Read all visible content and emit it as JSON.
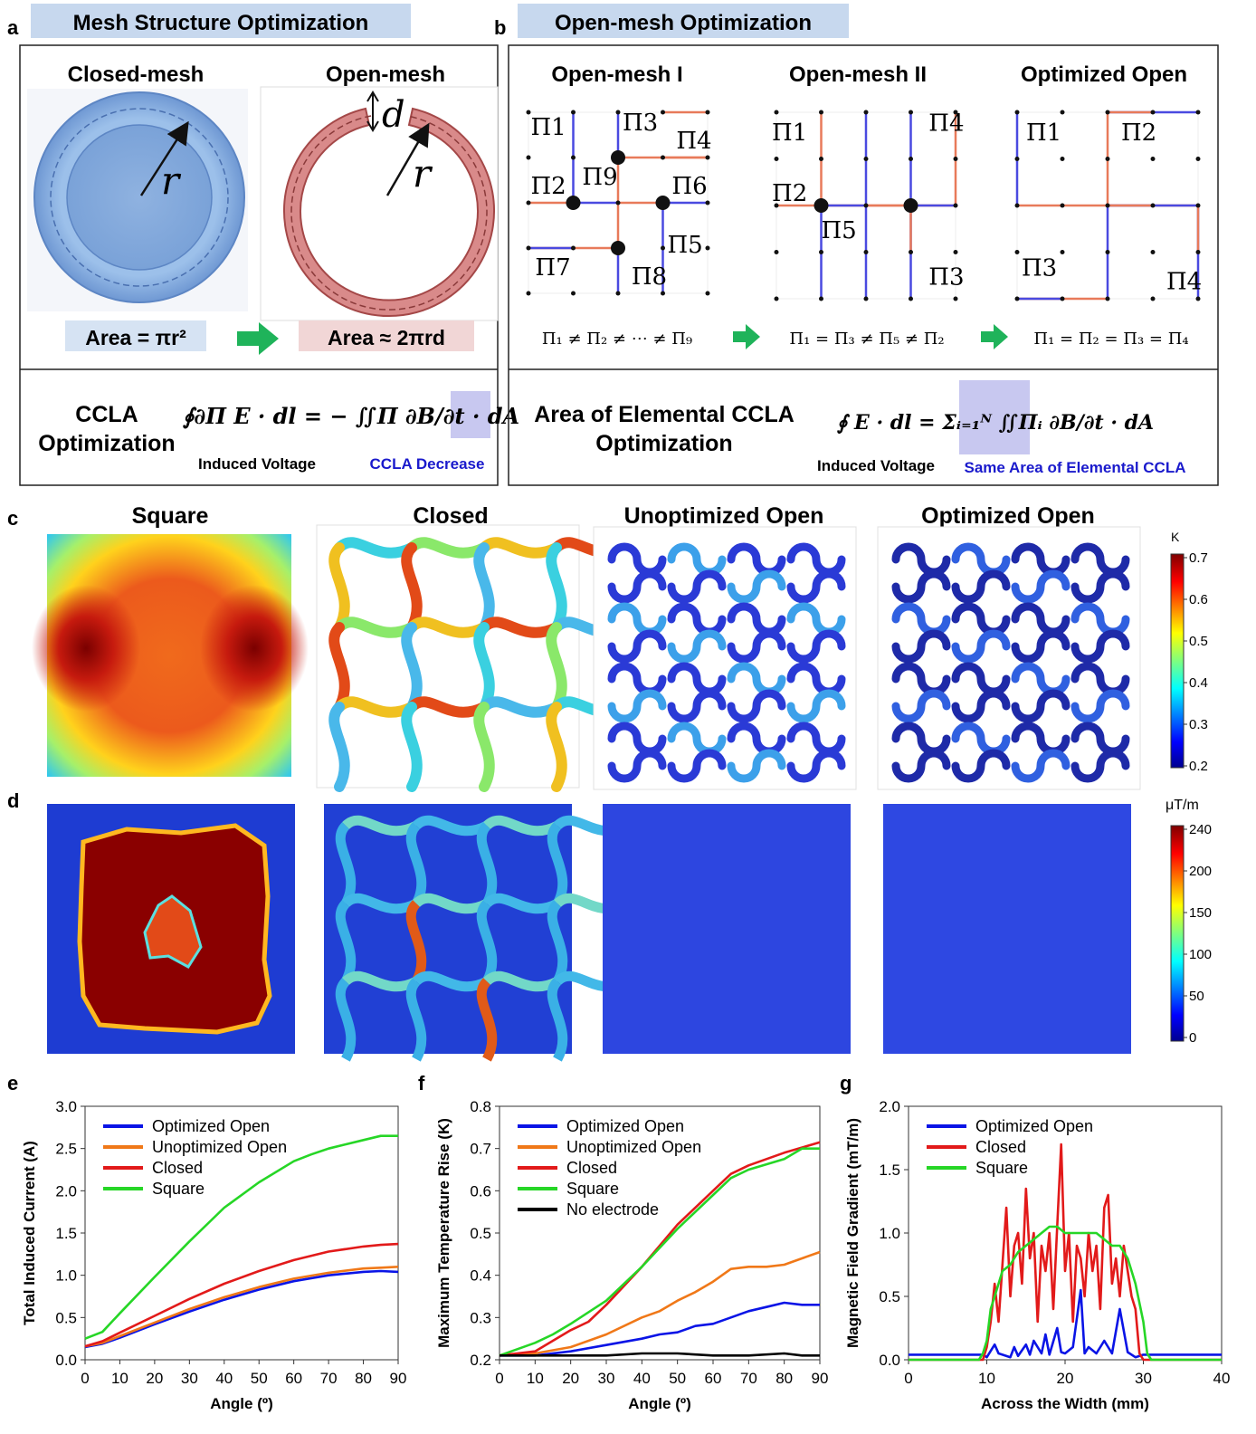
{
  "panel_labels": {
    "a": "a",
    "b": "b",
    "c": "c",
    "d": "d",
    "e": "e",
    "f": "f",
    "g": "g"
  },
  "colors": {
    "banner": "#c7d8ee",
    "closed_ring": "#7fa7d9",
    "open_ring": "#d47a7a",
    "arrow_green": "#1fb35a",
    "mesh_red": "#e87a5a",
    "mesh_blue": "#4a4ae0",
    "highlight": "#c8c8f0",
    "ccla_blue": "#1a1acc",
    "optimized": "#0a14e6",
    "unoptimized": "#f07818",
    "closed": "#e21a1a",
    "square": "#26d626",
    "no_electrode": "#000000"
  },
  "panel_a": {
    "banner": "Mesh Structure Optimization",
    "closed_title": "Closed-mesh",
    "open_title": "Open-mesh",
    "r_symbol": "r",
    "d_symbol": "d",
    "closed_area": "Area = πr²",
    "open_area": "Area ≈ 2πrd",
    "ccla_line1": "CCLA",
    "ccla_line2": "Optimization",
    "eq_lhs": "∮∂Π E · dl = − ∬Π ∂B/∂t · dA",
    "induced_voltage": "Induced Voltage",
    "ccla_decrease": "CCLA Decrease"
  },
  "panel_b": {
    "banner": "Open-mesh Optimization",
    "mesh1_title": "Open-mesh I",
    "mesh2_title": "Open-mesh II",
    "mesh3_title": "Optimized Open",
    "mesh1_labels": [
      "Π1",
      "Π2",
      "Π3",
      "Π4",
      "Π5",
      "Π6",
      "Π7",
      "Π8",
      "Π9"
    ],
    "mesh2_labels": [
      "Π1",
      "Π2",
      "Π3",
      "Π4",
      "Π5"
    ],
    "mesh3_labels": [
      "Π1",
      "Π2",
      "Π3",
      "Π4"
    ],
    "rel1": "Π₁ ≠ Π₂ ≠ ⋯ ≠ Π₉",
    "rel2": "Π₁ = Π₃ ≠ Π₅ ≠ Π₂",
    "rel3": "Π₁ = Π₂ = Π₃ = Π₄",
    "elem_line1": "Area of Elemental CCLA",
    "elem_line2": "Optimization",
    "induced_voltage": "Induced Voltage",
    "same_area": "Same Area of Elemental CCLA"
  },
  "panel_c": {
    "titles": [
      "Square",
      "Closed",
      "Unoptimized Open",
      "Optimized Open"
    ],
    "colorbar_unit": "K",
    "colorbar_ticks": [
      "0.7",
      "0.6",
      "0.5",
      "0.4",
      "0.3",
      "0.2"
    ]
  },
  "panel_d": {
    "colorbar_unit": "μT/m",
    "colorbar_ticks": [
      "240",
      "200",
      "150",
      "100",
      "50",
      "0"
    ]
  },
  "chart_data": [
    {
      "id": "e",
      "type": "line",
      "xlabel": "Angle (º)",
      "ylabel": "Total Induced Current (A)",
      "xlim": [
        0,
        90
      ],
      "ylim": [
        0,
        3.0
      ],
      "xticks": [
        "0",
        "10",
        "20",
        "30",
        "40",
        "50",
        "60",
        "70",
        "80",
        "90"
      ],
      "yticks": [
        "0.0",
        "0.5",
        "1.0",
        "1.5",
        "2.0",
        "2.5",
        "3.0"
      ],
      "legend_position": "top-left",
      "series": [
        {
          "name": "Optimized Open",
          "color": "#0a14e6",
          "x": [
            0,
            5,
            10,
            20,
            30,
            40,
            50,
            60,
            70,
            80,
            85,
            90
          ],
          "y": [
            0.15,
            0.19,
            0.26,
            0.42,
            0.57,
            0.71,
            0.83,
            0.93,
            1.0,
            1.04,
            1.05,
            1.04
          ]
        },
        {
          "name": "Unoptimized Open",
          "color": "#f07818",
          "x": [
            0,
            5,
            10,
            20,
            30,
            40,
            50,
            60,
            70,
            80,
            85,
            90
          ],
          "y": [
            0.16,
            0.2,
            0.28,
            0.44,
            0.6,
            0.74,
            0.86,
            0.96,
            1.03,
            1.08,
            1.09,
            1.1
          ]
        },
        {
          "name": "Closed",
          "color": "#e21a1a",
          "x": [
            0,
            5,
            10,
            20,
            30,
            40,
            50,
            60,
            70,
            80,
            85,
            90
          ],
          "y": [
            0.16,
            0.22,
            0.32,
            0.52,
            0.72,
            0.9,
            1.05,
            1.18,
            1.28,
            1.34,
            1.36,
            1.37
          ]
        },
        {
          "name": "Square",
          "color": "#26d626",
          "x": [
            0,
            5,
            10,
            20,
            30,
            40,
            50,
            60,
            65,
            70,
            80,
            85,
            90
          ],
          "y": [
            0.25,
            0.33,
            0.55,
            0.98,
            1.4,
            1.8,
            2.1,
            2.35,
            2.43,
            2.5,
            2.6,
            2.65,
            2.65
          ]
        }
      ]
    },
    {
      "id": "f",
      "type": "line",
      "xlabel": "Angle (º)",
      "ylabel": "Maximum Temperature Rise (K)",
      "xlim": [
        0,
        90
      ],
      "ylim": [
        0.2,
        0.8
      ],
      "xticks": [
        "0",
        "10",
        "20",
        "30",
        "40",
        "50",
        "60",
        "70",
        "80",
        "90"
      ],
      "yticks": [
        "0.2",
        "0.3",
        "0.4",
        "0.5",
        "0.6",
        "0.7",
        "0.8"
      ],
      "legend_position": "top-left",
      "series": [
        {
          "name": "Optimized Open",
          "color": "#0a14e6",
          "x": [
            0,
            10,
            20,
            30,
            40,
            45,
            50,
            55,
            60,
            65,
            70,
            75,
            80,
            85,
            90
          ],
          "y": [
            0.21,
            0.21,
            0.22,
            0.235,
            0.25,
            0.26,
            0.265,
            0.28,
            0.285,
            0.3,
            0.315,
            0.325,
            0.335,
            0.33,
            0.33
          ]
        },
        {
          "name": "Unoptimized Open",
          "color": "#f07818",
          "x": [
            0,
            10,
            20,
            30,
            40,
            45,
            50,
            55,
            60,
            65,
            70,
            75,
            80,
            85,
            90
          ],
          "y": [
            0.21,
            0.215,
            0.23,
            0.26,
            0.3,
            0.315,
            0.34,
            0.36,
            0.385,
            0.415,
            0.42,
            0.42,
            0.425,
            0.44,
            0.455
          ]
        },
        {
          "name": "Closed",
          "color": "#e21a1a",
          "x": [
            0,
            10,
            15,
            20,
            25,
            30,
            40,
            50,
            60,
            65,
            70,
            80,
            90
          ],
          "y": [
            0.21,
            0.22,
            0.245,
            0.27,
            0.29,
            0.33,
            0.42,
            0.52,
            0.6,
            0.64,
            0.66,
            0.69,
            0.715
          ]
        },
        {
          "name": "Square",
          "color": "#26d626",
          "x": [
            0,
            10,
            15,
            20,
            30,
            40,
            50,
            60,
            65,
            70,
            80,
            85,
            90
          ],
          "y": [
            0.21,
            0.24,
            0.26,
            0.285,
            0.34,
            0.42,
            0.51,
            0.59,
            0.63,
            0.65,
            0.675,
            0.7,
            0.7
          ]
        },
        {
          "name": "No electrode",
          "color": "#000000",
          "x": [
            0,
            10,
            20,
            30,
            40,
            50,
            60,
            70,
            80,
            85,
            90
          ],
          "y": [
            0.21,
            0.21,
            0.21,
            0.21,
            0.215,
            0.215,
            0.21,
            0.21,
            0.215,
            0.21,
            0.21
          ]
        }
      ]
    },
    {
      "id": "g",
      "type": "line",
      "xlabel": "Across the Width (mm)",
      "ylabel": "Magnetic Field Gradient (mT/m)",
      "xlim": [
        0,
        40
      ],
      "ylim": [
        0,
        2.0
      ],
      "xticks": [
        "0",
        "10",
        "20",
        "30",
        "40"
      ],
      "yticks": [
        "0.0",
        "0.5",
        "1.0",
        "1.5",
        "2.0"
      ],
      "legend_position": "top-left",
      "series": [
        {
          "name": "Optimized Open",
          "color": "#0a14e6",
          "x": [
            0,
            9.5,
            10,
            11,
            11.5,
            12,
            13,
            13.5,
            14,
            15,
            15.5,
            16,
            17,
            17.5,
            18,
            19,
            19.5,
            20,
            21,
            22,
            22.5,
            23,
            24,
            25,
            26,
            27,
            28,
            29,
            30,
            31,
            40
          ],
          "y": [
            0.04,
            0.04,
            0.02,
            0.12,
            0.05,
            0.04,
            0.02,
            0.1,
            0.03,
            0.12,
            0.04,
            0.15,
            0.05,
            0.2,
            0.04,
            0.25,
            0.06,
            0.05,
            0.1,
            0.55,
            0.05,
            0.1,
            0.05,
            0.15,
            0.05,
            0.4,
            0.06,
            0.02,
            0.04,
            0.04,
            0.04
          ]
        },
        {
          "name": "Closed",
          "color": "#e21a1a",
          "x": [
            0,
            9.5,
            10,
            10.5,
            11,
            11.5,
            12,
            12.5,
            13,
            13.5,
            14,
            14.5,
            15,
            15.5,
            16,
            16.5,
            17,
            17.5,
            18,
            18.5,
            19,
            19.5,
            20,
            20.5,
            21,
            21.5,
            22,
            22.5,
            23,
            23.5,
            24,
            24.5,
            25,
            25.5,
            26,
            26.5,
            27,
            27.5,
            28,
            28.5,
            29,
            29.5,
            30,
            31,
            40
          ],
          "y": [
            0,
            0,
            0.1,
            0.3,
            0.6,
            0.3,
            0.75,
            1.2,
            0.5,
            0.9,
            1.0,
            0.6,
            1.35,
            0.8,
            1.0,
            0.3,
            0.9,
            0.7,
            1.0,
            0.4,
            1.05,
            1.7,
            0.7,
            1.0,
            0.3,
            0.9,
            0.8,
            0.5,
            1.0,
            0.7,
            0.9,
            0.4,
            1.2,
            1.3,
            0.6,
            0.8,
            0.5,
            0.9,
            0.7,
            0.5,
            0.4,
            0.05,
            0,
            0,
            0
          ]
        },
        {
          "name": "Square",
          "color": "#26d626",
          "x": [
            0,
            9,
            9.5,
            10,
            10.5,
            11,
            12,
            13,
            14,
            15,
            16,
            17,
            18,
            19,
            20,
            21,
            22,
            23,
            24,
            25,
            26,
            27,
            28,
            29,
            30,
            30.5,
            31,
            40
          ],
          "y": [
            0,
            0,
            0.05,
            0.15,
            0.4,
            0.5,
            0.7,
            0.75,
            0.85,
            0.9,
            0.95,
            1.0,
            1.05,
            1.05,
            1.0,
            1.0,
            1.0,
            1.0,
            1.0,
            0.95,
            0.9,
            0.9,
            0.8,
            0.6,
            0.3,
            0.05,
            0,
            0
          ]
        }
      ]
    }
  ]
}
